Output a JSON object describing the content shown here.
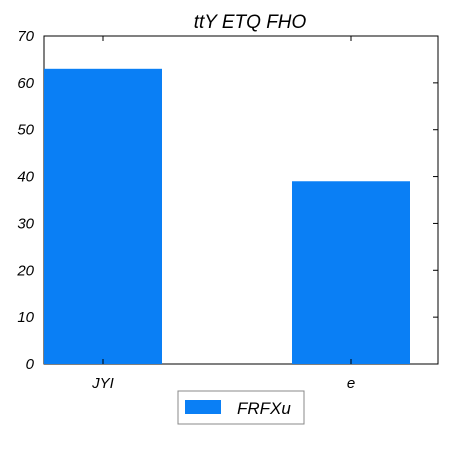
{
  "chart_data": {
    "type": "bar",
    "title": "ttY ETQ  FHO",
    "xlabel": "",
    "ylabel": "",
    "categories": [
      "JYI",
      "e"
    ],
    "series": [
      {
        "name": "FRFXu",
        "values": [
          63,
          39
        ]
      }
    ],
    "ylim": [
      0,
      70
    ],
    "yticks": [
      0,
      10,
      20,
      30,
      40,
      50,
      60,
      70
    ],
    "grid": false,
    "legend_position": "bottom-center",
    "colors": {
      "bar": "#0a7ff5",
      "axis": "#000000",
      "background": "#ffffff"
    }
  }
}
